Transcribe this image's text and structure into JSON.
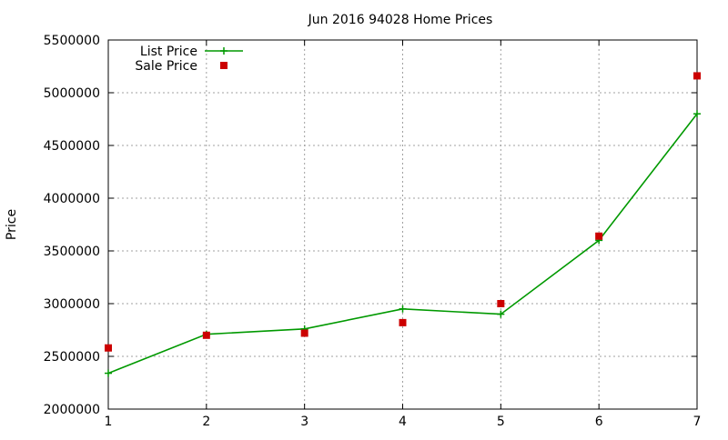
{
  "chart_data": {
    "type": "line",
    "title": "Jun 2016 94028 Home Prices",
    "xlabel": "",
    "ylabel": "Price",
    "x": [
      1,
      2,
      3,
      4,
      5,
      6,
      7
    ],
    "xlim": [
      1,
      7
    ],
    "ylim": [
      2000000,
      5500000
    ],
    "x_ticks": [
      1,
      2,
      3,
      4,
      5,
      6,
      7
    ],
    "y_ticks": [
      2000000,
      2500000,
      3000000,
      3500000,
      4000000,
      4500000,
      5000000,
      5500000
    ],
    "grid": true,
    "legend_position": "top-left",
    "series": [
      {
        "name": "List Price",
        "style": "line+points",
        "marker": "plus",
        "color": "#009900",
        "values": [
          2340000,
          2710000,
          2760000,
          2950000,
          2900000,
          3600000,
          4800000
        ]
      },
      {
        "name": "Sale Price",
        "style": "points",
        "marker": "square",
        "color": "#cc0000",
        "values": [
          2580000,
          2700000,
          2720000,
          2820000,
          3000000,
          3640000,
          5160000
        ]
      }
    ]
  }
}
